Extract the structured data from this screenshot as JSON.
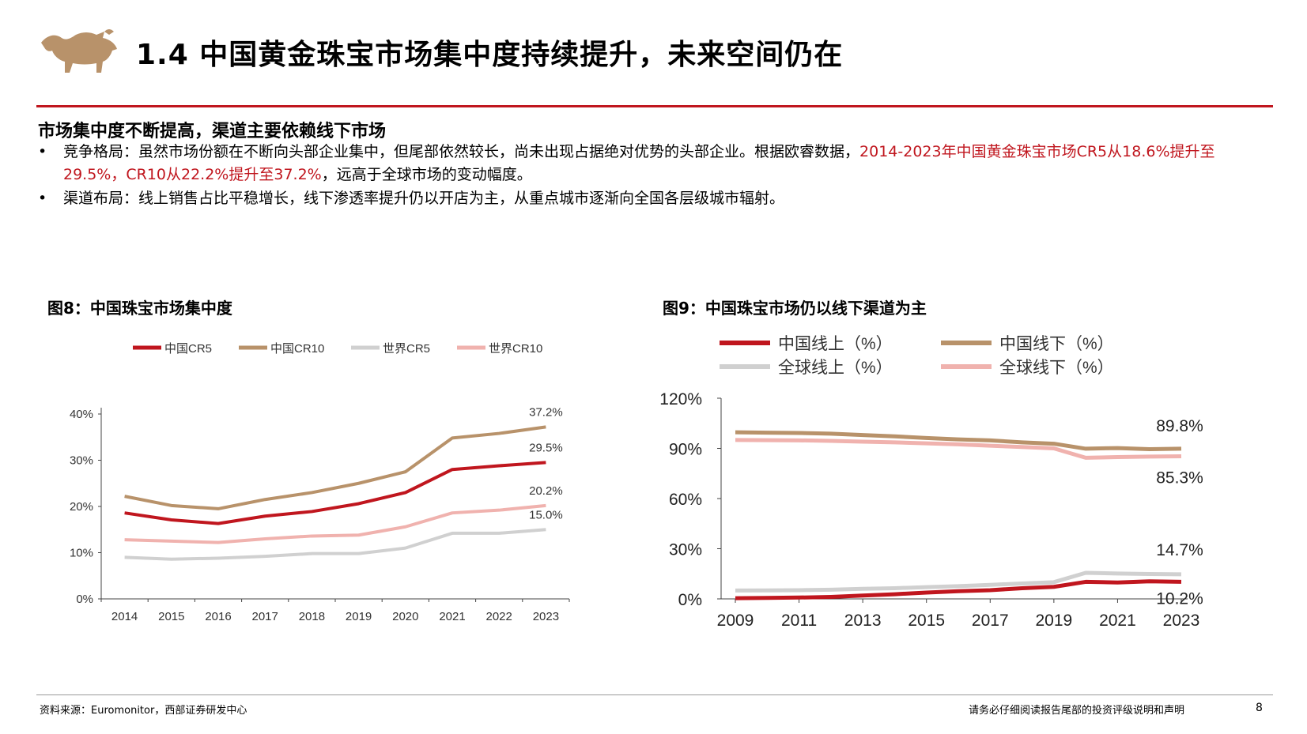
{
  "header": {
    "title": "1.4 中国黄金珠宝市场集中度持续提升，未来空间仍在"
  },
  "content": {
    "subheading": "市场集中度不断提高，渠道主要依赖线下市场",
    "bullets": [
      {
        "marker": "•",
        "text_a": "竞争格局：虽然市场份额在不断向头部企业集中，但尾部依然较长，尚未出现占据绝对优势的头部企业。根据欧睿数据，",
        "text_highlight": "2014-2023年中国黄金珠宝市场CR5从18.6%提升至29.5%，CR10从22.2%提升至37.2%",
        "text_b": "，远高于全球市场的变动幅度。"
      },
      {
        "marker": "•",
        "text": "渠道布局：线上销售占比平稳增长，线下渗透率提升仍以开店为主，从重点城市逐渐向全国各层级城市辐射。"
      }
    ]
  },
  "figure8": {
    "title": "图8：中国珠宝市场集中度"
  },
  "figure9": {
    "title": "图9：中国珠宝市场仍以线下渠道为主"
  },
  "chart_data": [
    {
      "type": "line",
      "title": "图8：中国珠宝市场集中度",
      "categories": [
        "2014",
        "2015",
        "2016",
        "2017",
        "2018",
        "2019",
        "2020",
        "2021",
        "2022",
        "2023"
      ],
      "ylim": [
        0,
        40
      ],
      "yticks": [
        0,
        10,
        20,
        30,
        40
      ],
      "ytick_labels": [
        "0%",
        "10%",
        "20%",
        "30%",
        "40%"
      ],
      "legend_position": "top",
      "series": [
        {
          "name": "中国CR5",
          "color": "#c0161e",
          "values": [
            18.6,
            17.1,
            16.3,
            17.9,
            18.9,
            20.6,
            23.0,
            28.0,
            28.8,
            29.5
          ]
        },
        {
          "name": "中国CR10",
          "color": "#b8926a",
          "values": [
            22.2,
            20.2,
            19.5,
            21.5,
            23.0,
            25.0,
            27.5,
            34.8,
            35.8,
            37.2
          ]
        },
        {
          "name": "世界CR5",
          "color": "#d0d0d0",
          "values": [
            9.0,
            8.6,
            8.8,
            9.2,
            9.8,
            9.8,
            11.0,
            14.2,
            14.2,
            15.0
          ]
        },
        {
          "name": "世界CR10",
          "color": "#f0b2ae",
          "values": [
            12.8,
            12.5,
            12.2,
            13.0,
            13.6,
            13.8,
            15.6,
            18.6,
            19.2,
            20.2
          ]
        }
      ],
      "annotations": [
        {
          "series": "中国CR10",
          "text": "37.2%"
        },
        {
          "series": "中国CR5",
          "text": "29.5%"
        },
        {
          "series": "世界CR10",
          "text": "20.2%"
        },
        {
          "series": "世界CR5",
          "text": "15.0%"
        }
      ]
    },
    {
      "type": "line",
      "title": "图9：中国珠宝市场仍以线下渠道为主",
      "x": [
        2009,
        2010,
        2011,
        2012,
        2013,
        2014,
        2015,
        2016,
        2017,
        2018,
        2019,
        2020,
        2021,
        2022,
        2023
      ],
      "xticks": [
        "2009",
        "2011",
        "2013",
        "2015",
        "2017",
        "2019",
        "2021",
        "2023"
      ],
      "ylim": [
        0,
        120
      ],
      "yticks": [
        0,
        30,
        60,
        90,
        120
      ],
      "ytick_labels": [
        "0%",
        "30%",
        "60%",
        "90%",
        "120%"
      ],
      "legend_position": "top",
      "series": [
        {
          "name": "中国线上（%）",
          "color": "#c0161e",
          "values": [
            0.4,
            0.6,
            0.8,
            1.2,
            2.0,
            2.8,
            3.8,
            4.6,
            5.2,
            6.4,
            7.2,
            10.2,
            9.8,
            10.5,
            10.2
          ]
        },
        {
          "name": "中国线下（%）",
          "color": "#b8926a",
          "values": [
            99.6,
            99.4,
            99.2,
            98.8,
            98.0,
            97.2,
            96.2,
            95.4,
            94.8,
            93.6,
            92.8,
            89.8,
            90.2,
            89.5,
            89.8
          ]
        },
        {
          "name": "全球线上（%）",
          "color": "#d0d0d0",
          "values": [
            5.0,
            5.1,
            5.2,
            5.5,
            6.0,
            6.4,
            7.0,
            7.6,
            8.4,
            9.2,
            10.0,
            15.6,
            15.2,
            14.9,
            14.7
          ]
        },
        {
          "name": "全球线下（%）",
          "color": "#f0b2ae",
          "values": [
            95.0,
            94.9,
            94.8,
            94.5,
            94.0,
            93.6,
            93.0,
            92.4,
            91.6,
            90.8,
            90.0,
            84.4,
            84.8,
            85.1,
            85.3
          ]
        }
      ],
      "annotations": [
        {
          "series": "中国线下（%）",
          "text": "89.8%"
        },
        {
          "series": "全球线下（%）",
          "text": "85.3%"
        },
        {
          "series": "全球线上（%）",
          "text": "14.7%"
        },
        {
          "series": "中国线上（%）",
          "text": "10.2%"
        }
      ]
    }
  ],
  "footer": {
    "source": "资料来源：Euromonitor，西部证券研发中心",
    "disclaimer": "请务必仔细阅读报告尾部的投资评级说明和声明",
    "page": "8"
  }
}
